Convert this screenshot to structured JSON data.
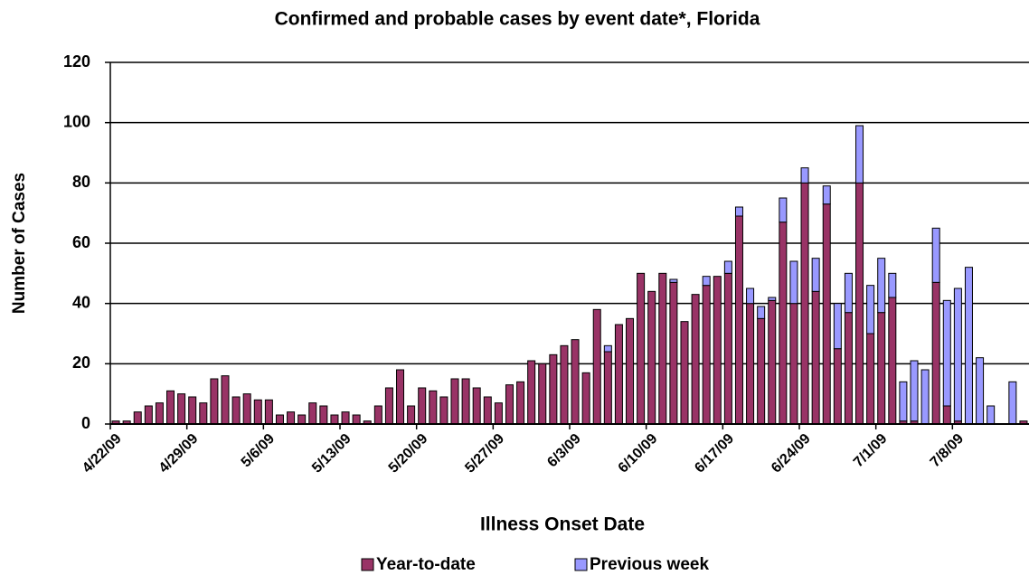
{
  "chart_data": {
    "type": "stacked_bar",
    "title": "Confirmed and probable cases by event date*, Florida",
    "x_label": "Illness Onset Date",
    "y_label": "Number of Cases",
    "categories": [
      "4/22/09",
      null,
      null,
      null,
      null,
      null,
      null,
      "4/29/09",
      null,
      null,
      null,
      null,
      null,
      null,
      "5/6/09",
      null,
      null,
      null,
      null,
      null,
      null,
      "5/13/09",
      null,
      null,
      null,
      null,
      null,
      null,
      "5/20/09",
      null,
      null,
      null,
      null,
      null,
      null,
      "5/27/09",
      null,
      null,
      null,
      null,
      null,
      null,
      "6/3/09",
      null,
      null,
      null,
      null,
      null,
      null,
      "6/10/09",
      null,
      null,
      null,
      null,
      null,
      null,
      "6/17/09",
      null,
      null,
      null,
      null,
      null,
      null,
      "6/24/09",
      null,
      null,
      null,
      null,
      null,
      null,
      "7/1/09",
      null,
      null,
      null,
      null,
      null,
      null,
      "7/8/09",
      null,
      null,
      null,
      null,
      null,
      null
    ],
    "series": [
      {
        "name": "Year-to-date",
        "color": "#993366",
        "values": [
          1,
          1,
          4,
          6,
          7,
          11,
          10,
          9,
          7,
          15,
          16,
          9,
          10,
          8,
          8,
          3,
          4,
          3,
          7,
          6,
          3,
          4,
          3,
          1,
          6,
          12,
          18,
          6,
          12,
          11,
          9,
          15,
          15,
          12,
          9,
          7,
          13,
          14,
          21,
          20,
          23,
          26,
          28,
          17,
          38,
          24,
          33,
          35,
          50,
          44,
          50,
          47,
          34,
          43,
          46,
          49,
          50,
          69,
          40,
          35,
          41,
          67,
          40,
          80,
          44,
          73,
          25,
          37,
          80,
          30,
          37,
          42,
          1,
          1,
          0,
          47,
          6,
          1,
          0,
          0,
          0,
          0,
          0,
          1
        ]
      },
      {
        "name": "Previous week",
        "color": "#9999ff",
        "values": [
          0,
          0,
          0,
          0,
          0,
          0,
          0,
          0,
          0,
          0,
          0,
          0,
          0,
          0,
          0,
          0,
          0,
          0,
          0,
          0,
          0,
          0,
          0,
          0,
          0,
          0,
          0,
          0,
          0,
          0,
          0,
          0,
          0,
          0,
          0,
          0,
          0,
          0,
          0,
          0,
          0,
          0,
          0,
          0,
          0,
          2,
          0,
          0,
          0,
          0,
          0,
          1,
          0,
          0,
          3,
          0,
          4,
          3,
          5,
          4,
          1,
          8,
          14,
          5,
          11,
          6,
          15,
          13,
          19,
          16,
          18,
          8,
          13,
          20,
          18,
          18,
          35,
          44,
          52,
          22,
          6,
          0,
          14,
          0
        ]
      }
    ],
    "ylim": [
      0,
      120
    ],
    "yticks": [
      0,
      20,
      40,
      60,
      80,
      100,
      120
    ],
    "grid": true
  }
}
